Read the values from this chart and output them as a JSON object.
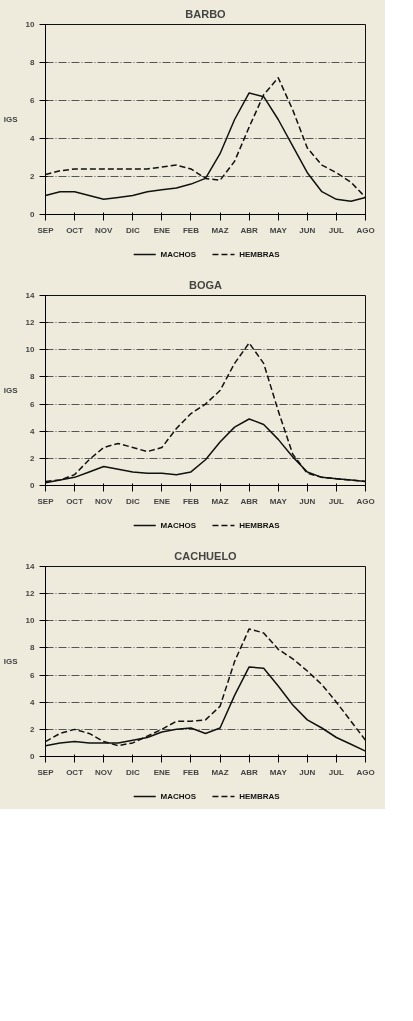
{
  "chart_data": [
    {
      "type": "line",
      "title": "BARBO",
      "ylabel": "IGS",
      "ylim": [
        0,
        10
      ],
      "yticks": [
        0,
        2,
        4,
        6,
        8,
        10
      ],
      "categories": [
        "SEP",
        null,
        "OCT",
        null,
        "NOV",
        null,
        "DIC",
        null,
        "ENE",
        null,
        "FEB",
        null,
        "MAZ",
        null,
        "ABR",
        null,
        "MAY",
        null,
        "JUN",
        null,
        "JUL",
        null,
        "AGO"
      ],
      "grid": "y",
      "legend": "bottom",
      "marker": "none",
      "series": [
        {
          "name": "MACHOS",
          "color": "#111111",
          "line_style": "solid",
          "values": [
            1.0,
            1.2,
            1.2,
            1.0,
            0.8,
            0.9,
            1.0,
            1.2,
            1.3,
            1.4,
            1.6,
            1.9,
            3.2,
            5.0,
            6.4,
            6.2,
            5.0,
            3.6,
            2.2,
            1.2,
            0.8,
            0.7,
            0.9
          ]
        },
        {
          "name": "HEMBRAS",
          "color": "#111111",
          "line_style": "dashed",
          "values": [
            2.1,
            2.3,
            2.4,
            2.4,
            2.4,
            2.4,
            2.4,
            2.4,
            2.5,
            2.6,
            2.4,
            1.9,
            1.8,
            2.8,
            4.6,
            6.3,
            7.2,
            5.5,
            3.5,
            2.6,
            2.2,
            1.7,
            0.9
          ]
        }
      ]
    },
    {
      "type": "line",
      "title": "BOGA",
      "ylabel": "IGS",
      "ylim": [
        0,
        14
      ],
      "yticks": [
        0,
        2,
        4,
        6,
        8,
        10,
        12,
        14
      ],
      "categories": [
        "SEP",
        null,
        "OCT",
        null,
        "NOV",
        null,
        "DIC",
        null,
        "ENE",
        null,
        "FEB",
        null,
        "MAZ",
        null,
        "ABR",
        null,
        "MAY",
        null,
        "JUN",
        null,
        "JUL",
        null,
        "AGO"
      ],
      "grid": "y",
      "legend": "bottom",
      "marker": "none",
      "series": [
        {
          "name": "MACHOS",
          "color": "#111111",
          "line_style": "solid",
          "values": [
            0.2,
            0.4,
            0.6,
            1.0,
            1.4,
            1.2,
            1.0,
            0.9,
            0.9,
            0.8,
            1.0,
            1.9,
            3.2,
            4.3,
            4.9,
            4.5,
            3.4,
            2.1,
            1.0,
            0.6,
            0.5,
            0.4,
            0.3
          ]
        },
        {
          "name": "HEMBRAS",
          "color": "#111111",
          "line_style": "dashed",
          "values": [
            0.3,
            0.4,
            0.8,
            1.9,
            2.8,
            3.1,
            2.8,
            2.5,
            2.8,
            4.2,
            5.3,
            6.0,
            7.0,
            9.0,
            10.5,
            9.0,
            5.5,
            2.3,
            0.9,
            0.6,
            0.5,
            0.4,
            0.3
          ]
        }
      ]
    },
    {
      "type": "line",
      "title": "CACHUELO",
      "ylabel": "IGS",
      "ylim": [
        0,
        14
      ],
      "yticks": [
        0,
        2,
        4,
        6,
        8,
        10,
        12,
        14
      ],
      "categories": [
        "SEP",
        null,
        "OCT",
        null,
        "NOV",
        null,
        "DIC",
        null,
        "ENE",
        null,
        "FEB",
        null,
        "MAZ",
        null,
        "ABR",
        null,
        "MAY",
        null,
        "JUN",
        null,
        "JUL",
        null,
        "AGO"
      ],
      "grid": "y",
      "legend": "bottom",
      "marker": "none",
      "series": [
        {
          "name": "MACHOS",
          "color": "#111111",
          "line_style": "solid",
          "values": [
            0.8,
            1.0,
            1.1,
            1.0,
            1.0,
            1.0,
            1.2,
            1.4,
            1.8,
            2.0,
            2.1,
            1.7,
            2.1,
            4.5,
            6.6,
            6.5,
            5.2,
            3.8,
            2.7,
            2.1,
            1.4,
            0.9,
            0.4
          ]
        },
        {
          "name": "HEMBRAS",
          "color": "#111111",
          "line_style": "dashed",
          "values": [
            1.1,
            1.7,
            2.0,
            1.7,
            1.1,
            0.8,
            1.0,
            1.5,
            2.0,
            2.6,
            2.6,
            2.7,
            3.7,
            7.0,
            9.4,
            9.1,
            7.9,
            7.2,
            6.3,
            5.3,
            4.0,
            2.6,
            1.2
          ]
        }
      ]
    }
  ]
}
